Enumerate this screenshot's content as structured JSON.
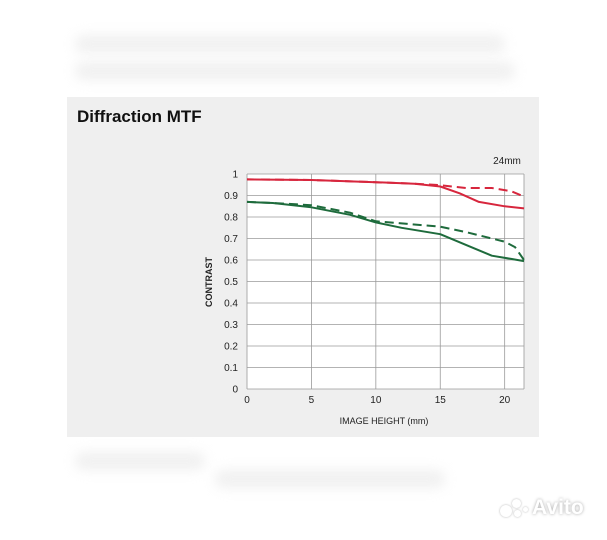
{
  "panel": {
    "title": "Diffraction MTF"
  },
  "chart_data": {
    "type": "line",
    "title": "Diffraction MTF",
    "annotation": "24mm",
    "xlabel": "IMAGE HEIGHT (mm)",
    "ylabel": "CONTRAST",
    "xlim": [
      0,
      21.5
    ],
    "ylim": [
      0,
      1
    ],
    "xticks": [
      0,
      5,
      10,
      15,
      20
    ],
    "yticks": [
      0,
      0.1,
      0.2,
      0.3,
      0.4,
      0.5,
      0.6,
      0.7,
      0.8,
      0.9,
      1
    ],
    "ytick_labels": [
      "0",
      "0.1",
      "0.2",
      "0.3",
      "0.4",
      "0.5",
      "0.6",
      "0.7",
      "0.8",
      "0.9",
      "1"
    ],
    "grid": true,
    "series": [
      {
        "color": "#d7263d",
        "dash": "solid",
        "x": [
          0,
          5,
          10,
          13,
          15,
          16.5,
          18,
          20,
          21.5
        ],
        "y": [
          0.975,
          0.972,
          0.962,
          0.955,
          0.942,
          0.91,
          0.87,
          0.85,
          0.84
        ]
      },
      {
        "color": "#d7263d",
        "dash": "dashed",
        "x": [
          0,
          5,
          10,
          13,
          15,
          17,
          19,
          20.5,
          21.5
        ],
        "y": [
          0.975,
          0.972,
          0.962,
          0.955,
          0.948,
          0.935,
          0.935,
          0.92,
          0.895
        ]
      },
      {
        "color": "#1e6b3c",
        "dash": "solid",
        "x": [
          0,
          2,
          5,
          8,
          10,
          12,
          15,
          17,
          19,
          20.5,
          21.5
        ],
        "y": [
          0.87,
          0.865,
          0.845,
          0.81,
          0.775,
          0.75,
          0.72,
          0.67,
          0.62,
          0.605,
          0.595
        ]
      },
      {
        "color": "#1e6b3c",
        "dash": "dashed",
        "x": [
          0,
          2,
          5,
          8,
          10,
          12,
          15,
          17,
          19,
          20,
          20.8,
          21.5
        ],
        "y": [
          0.87,
          0.865,
          0.855,
          0.82,
          0.78,
          0.77,
          0.755,
          0.73,
          0.7,
          0.685,
          0.66,
          0.6
        ]
      }
    ]
  },
  "watermark": {
    "text": "Avito"
  }
}
